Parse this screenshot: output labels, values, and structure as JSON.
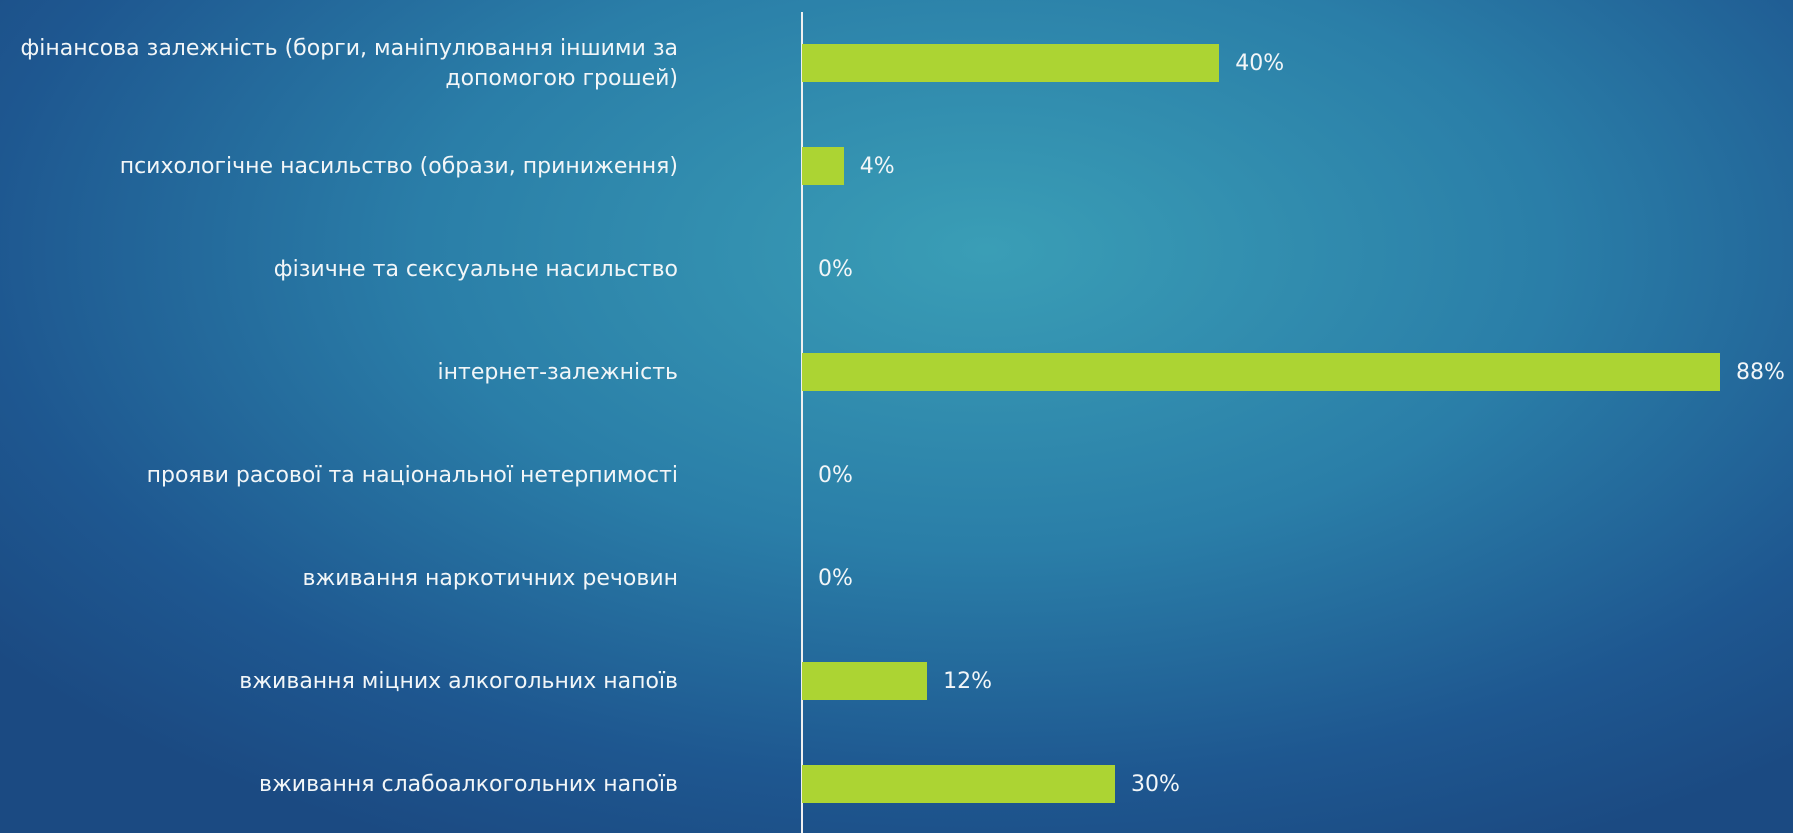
{
  "chart_data": {
    "type": "barh",
    "categories": [
      "фінансова залежність (борги, маніпулювання іншими за допомогою грошей)",
      "психологічне насильство (образи, приниження)",
      "фізичне та сексуальне насильство",
      "інтернет-залежність",
      "прояви расової та національної нетерпимості",
      "вживання наркотичних речовин",
      "вживання міцних алкогольних напоїв",
      "вживання слабоалкогольних напоїв"
    ],
    "values": [
      40,
      4,
      0,
      88,
      0,
      0,
      12,
      30
    ],
    "value_labels": [
      "40%",
      "4%",
      "0%",
      "88%",
      "0%",
      "0%",
      "12%",
      "30%"
    ],
    "color": "#acd433"
  }
}
